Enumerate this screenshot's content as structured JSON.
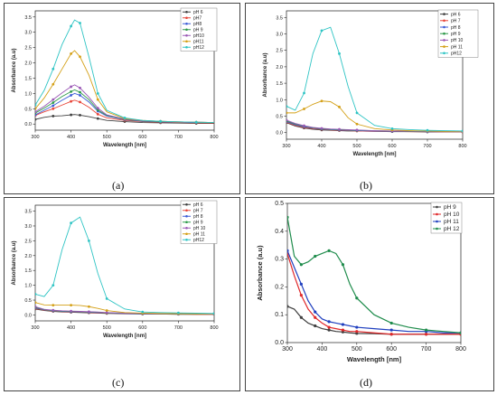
{
  "panel_labels": [
    "(a)",
    "(b)",
    "(c)",
    "(d)"
  ],
  "chart_data": [
    {
      "type": "line",
      "panel": "(a)",
      "xlabel": "Wavelength [nm]",
      "ylabel": "Absorbance (a.u)",
      "xlim": [
        300,
        800
      ],
      "ylim": [
        -0.2,
        3.7
      ],
      "xticks": [
        300,
        400,
        500,
        600,
        700,
        800
      ],
      "yticks": [
        0.0,
        0.5,
        1.0,
        1.5,
        2.0,
        2.5,
        3.0,
        3.5
      ],
      "legend_position": "top-right",
      "x": [
        300,
        325,
        350,
        375,
        400,
        410,
        425,
        450,
        475,
        500,
        550,
        600,
        650,
        700,
        750,
        800
      ],
      "series": [
        {
          "name": "pH 6",
          "color": "#404040",
          "values": [
            0.15,
            0.22,
            0.26,
            0.27,
            0.3,
            0.31,
            0.29,
            0.24,
            0.18,
            0.12,
            0.08,
            0.05,
            0.04,
            0.03,
            0.02,
            0.02
          ]
        },
        {
          "name": "pH7",
          "color": "#e8463a",
          "values": [
            0.28,
            0.4,
            0.5,
            0.62,
            0.74,
            0.78,
            0.72,
            0.55,
            0.32,
            0.2,
            0.12,
            0.08,
            0.06,
            0.05,
            0.04,
            0.04
          ]
        },
        {
          "name": "pH8",
          "color": "#3b5bd6",
          "values": [
            0.3,
            0.45,
            0.6,
            0.78,
            0.94,
            1.0,
            0.94,
            0.72,
            0.42,
            0.26,
            0.14,
            0.09,
            0.07,
            0.06,
            0.05,
            0.05
          ]
        },
        {
          "name": "pH 9",
          "color": "#2e9a4a",
          "values": [
            0.36,
            0.52,
            0.7,
            0.9,
            1.06,
            1.12,
            1.04,
            0.8,
            0.46,
            0.28,
            0.15,
            0.1,
            0.08,
            0.07,
            0.06,
            0.05
          ]
        },
        {
          "name": "pH10",
          "color": "#9b59b6",
          "values": [
            0.4,
            0.58,
            0.8,
            1.02,
            1.22,
            1.28,
            1.18,
            0.88,
            0.52,
            0.3,
            0.16,
            0.11,
            0.09,
            0.07,
            0.06,
            0.05
          ]
        },
        {
          "name": "pH11",
          "color": "#d4a017",
          "values": [
            0.5,
            0.85,
            1.3,
            1.8,
            2.3,
            2.4,
            2.2,
            1.6,
            0.8,
            0.4,
            0.18,
            0.12,
            0.09,
            0.07,
            0.06,
            0.05
          ]
        },
        {
          "name": "pH12",
          "color": "#2ec4c4",
          "values": [
            0.62,
            1.1,
            1.8,
            2.6,
            3.2,
            3.4,
            3.3,
            2.2,
            1.0,
            0.45,
            0.2,
            0.12,
            0.09,
            0.07,
            0.06,
            0.05
          ]
        }
      ]
    },
    {
      "type": "line",
      "panel": "(b)",
      "xlabel": "Wavelength [nm]",
      "ylabel": "Absorbance (a.u)",
      "xlim": [
        300,
        800
      ],
      "ylim": [
        -0.2,
        3.7
      ],
      "xticks": [
        300,
        400,
        500,
        600,
        700,
        800
      ],
      "yticks": [
        0.0,
        0.5,
        1.0,
        1.5,
        2.0,
        2.5,
        3.0,
        3.5
      ],
      "legend_position": "top-right",
      "x": [
        300,
        325,
        350,
        375,
        400,
        425,
        450,
        475,
        500,
        550,
        600,
        650,
        700,
        750,
        800
      ],
      "series": [
        {
          "name": "pH 6",
          "color": "#404040",
          "values": [
            0.3,
            0.2,
            0.14,
            0.1,
            0.08,
            0.07,
            0.06,
            0.05,
            0.05,
            0.04,
            0.03,
            0.03,
            0.02,
            0.02,
            0.02
          ]
        },
        {
          "name": "pH 7",
          "color": "#e8463a",
          "values": [
            0.32,
            0.22,
            0.16,
            0.12,
            0.1,
            0.08,
            0.07,
            0.06,
            0.05,
            0.04,
            0.04,
            0.03,
            0.03,
            0.02,
            0.02
          ]
        },
        {
          "name": "pH 8",
          "color": "#3b5bd6",
          "values": [
            0.34,
            0.24,
            0.18,
            0.14,
            0.11,
            0.09,
            0.08,
            0.07,
            0.06,
            0.05,
            0.04,
            0.04,
            0.03,
            0.03,
            0.03
          ]
        },
        {
          "name": "pH 9",
          "color": "#2e9a4a",
          "values": [
            0.36,
            0.26,
            0.2,
            0.15,
            0.12,
            0.1,
            0.09,
            0.08,
            0.07,
            0.06,
            0.05,
            0.04,
            0.04,
            0.03,
            0.03
          ]
        },
        {
          "name": "pH 10",
          "color": "#9b59b6",
          "values": [
            0.38,
            0.28,
            0.21,
            0.16,
            0.13,
            0.11,
            0.1,
            0.09,
            0.08,
            0.06,
            0.05,
            0.05,
            0.04,
            0.04,
            0.03
          ]
        },
        {
          "name": "pH 11",
          "color": "#d4a017",
          "values": [
            0.6,
            0.6,
            0.72,
            0.86,
            0.96,
            0.94,
            0.78,
            0.45,
            0.26,
            0.12,
            0.08,
            0.06,
            0.05,
            0.04,
            0.04
          ]
        },
        {
          "name": "pH12",
          "color": "#2ec4c4",
          "values": [
            0.8,
            0.68,
            1.2,
            2.4,
            3.1,
            3.2,
            2.4,
            1.4,
            0.6,
            0.22,
            0.12,
            0.09,
            0.07,
            0.06,
            0.05
          ]
        }
      ]
    },
    {
      "type": "line",
      "panel": "(c)",
      "xlabel": "Wavelength [nm]",
      "ylabel": "Absorbance (a.u)",
      "xlim": [
        300,
        800
      ],
      "ylim": [
        -0.2,
        3.7
      ],
      "xticks": [
        300,
        400,
        500,
        600,
        700,
        800
      ],
      "yticks": [
        0.0,
        0.5,
        1.0,
        1.5,
        2.0,
        2.5,
        3.0,
        3.5
      ],
      "legend_position": "top-right",
      "x": [
        300,
        325,
        350,
        375,
        400,
        425,
        450,
        475,
        500,
        550,
        600,
        650,
        700,
        750,
        800
      ],
      "series": [
        {
          "name": "pH 6",
          "color": "#404040",
          "values": [
            0.2,
            0.15,
            0.12,
            0.1,
            0.09,
            0.08,
            0.07,
            0.06,
            0.05,
            0.04,
            0.03,
            0.03,
            0.02,
            0.02,
            0.02
          ]
        },
        {
          "name": "pH 7",
          "color": "#e8463a",
          "values": [
            0.22,
            0.16,
            0.13,
            0.11,
            0.1,
            0.09,
            0.08,
            0.07,
            0.06,
            0.05,
            0.04,
            0.03,
            0.03,
            0.02,
            0.02
          ]
        },
        {
          "name": "pH 8",
          "color": "#3b5bd6",
          "values": [
            0.24,
            0.17,
            0.14,
            0.12,
            0.11,
            0.1,
            0.09,
            0.08,
            0.07,
            0.05,
            0.04,
            0.04,
            0.03,
            0.03,
            0.03
          ]
        },
        {
          "name": "pH 9",
          "color": "#2e9a4a",
          "values": [
            0.26,
            0.18,
            0.15,
            0.13,
            0.12,
            0.11,
            0.1,
            0.09,
            0.07,
            0.06,
            0.05,
            0.04,
            0.04,
            0.03,
            0.03
          ]
        },
        {
          "name": "pH 10",
          "color": "#9b59b6",
          "values": [
            0.28,
            0.19,
            0.16,
            0.14,
            0.13,
            0.12,
            0.11,
            0.1,
            0.08,
            0.06,
            0.05,
            0.05,
            0.04,
            0.04,
            0.03
          ]
        },
        {
          "name": "pH 11",
          "color": "#d4a017",
          "values": [
            0.42,
            0.34,
            0.33,
            0.33,
            0.33,
            0.32,
            0.28,
            0.22,
            0.15,
            0.08,
            0.06,
            0.05,
            0.04,
            0.04,
            0.04
          ]
        },
        {
          "name": "pH12",
          "color": "#2ec4c4",
          "values": [
            0.7,
            0.62,
            1.0,
            2.2,
            3.1,
            3.3,
            2.5,
            1.4,
            0.55,
            0.2,
            0.1,
            0.08,
            0.07,
            0.06,
            0.05
          ]
        }
      ]
    },
    {
      "type": "line",
      "panel": "(d)",
      "xlabel": "Wavelength [nm]",
      "ylabel": "Absorbance (a.u)",
      "xlim": [
        300,
        800
      ],
      "ylim": [
        0.0,
        0.5
      ],
      "xticks": [
        300,
        400,
        500,
        600,
        700,
        800
      ],
      "yticks": [
        0.0,
        0.1,
        0.2,
        0.3,
        0.4,
        0.5
      ],
      "legend_position": "top-right",
      "x": [
        300,
        320,
        340,
        360,
        380,
        400,
        420,
        440,
        460,
        480,
        500,
        550,
        600,
        650,
        700,
        750,
        800
      ],
      "series": [
        {
          "name": "pH 9",
          "color": "#404040",
          "values": [
            0.13,
            0.12,
            0.09,
            0.07,
            0.06,
            0.05,
            0.045,
            0.04,
            0.038,
            0.035,
            0.033,
            0.032,
            0.03,
            0.03,
            0.03,
            0.03,
            0.03
          ]
        },
        {
          "name": "pH 10",
          "color": "#e0282a",
          "values": [
            0.32,
            0.24,
            0.17,
            0.12,
            0.09,
            0.07,
            0.055,
            0.05,
            0.045,
            0.04,
            0.04,
            0.035,
            0.03,
            0.03,
            0.03,
            0.03,
            0.03
          ]
        },
        {
          "name": "pH 11",
          "color": "#1f3fbf",
          "values": [
            0.33,
            0.27,
            0.21,
            0.15,
            0.11,
            0.085,
            0.075,
            0.07,
            0.065,
            0.06,
            0.055,
            0.05,
            0.045,
            0.04,
            0.04,
            0.035,
            0.035
          ]
        },
        {
          "name": "pH 12",
          "color": "#1f8c4c",
          "values": [
            0.45,
            0.31,
            0.28,
            0.29,
            0.31,
            0.32,
            0.33,
            0.32,
            0.28,
            0.21,
            0.16,
            0.1,
            0.07,
            0.055,
            0.045,
            0.04,
            0.035
          ]
        }
      ]
    }
  ]
}
